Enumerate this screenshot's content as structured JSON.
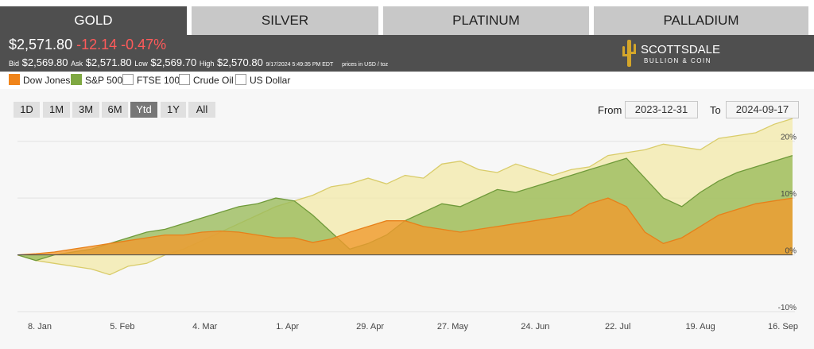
{
  "tabs": [
    {
      "label": "GOLD",
      "active": true
    },
    {
      "label": "SILVER",
      "active": false
    },
    {
      "label": "PLATINUM",
      "active": false
    },
    {
      "label": "PALLADIUM",
      "active": false
    }
  ],
  "quote": {
    "price": "$2,571.80",
    "change": "-12.14",
    "change_pct": "-0.47%",
    "bid_label": "Bid",
    "bid": "$2,569.80",
    "ask_label": "Ask",
    "ask": "$2,571.80",
    "low_label": "Low",
    "low": "$2,569.70",
    "high_label": "High",
    "high": "$2,570.80",
    "timestamp": "9/17/2024 5:49:35 PM EDT",
    "units": "prices in USD / toz"
  },
  "logo": {
    "line1": "SCOTTSDALE",
    "line2": "BULLION & COIN"
  },
  "legend": [
    {
      "label": "Dow Jones",
      "checked": true,
      "color": "#f0841a"
    },
    {
      "label": "S&P 500",
      "checked": true,
      "color": "#7fa842"
    },
    {
      "label": "FTSE 100",
      "checked": false,
      "color": "#ffffff"
    },
    {
      "label": "Crude Oil",
      "checked": false,
      "color": "#ffffff"
    },
    {
      "label": "US Dollar",
      "checked": false,
      "color": "#ffffff"
    }
  ],
  "range_buttons": [
    {
      "label": "1D",
      "active": false
    },
    {
      "label": "1M",
      "active": false
    },
    {
      "label": "3M",
      "active": false
    },
    {
      "label": "6M",
      "active": false
    },
    {
      "label": "Ytd",
      "active": true
    },
    {
      "label": "1Y",
      "active": false
    },
    {
      "label": "All",
      "active": false
    }
  ],
  "date_range": {
    "from_label": "From",
    "from": "2023-12-31",
    "to_label": "To",
    "to": "2024-09-17"
  },
  "chart_data": {
    "type": "area",
    "x_ticks": [
      "8. Jan",
      "5. Feb",
      "4. Mar",
      "1. Apr",
      "29. Apr",
      "27. May",
      "24. Jun",
      "22. Jul",
      "19. Aug",
      "16. Sep"
    ],
    "y_ticks": [
      "20%",
      "10%",
      "0%",
      "-10%"
    ],
    "ylim": [
      -10,
      25
    ],
    "series": [
      {
        "name": "",
        "color": "#f3e9a8",
        "values": [
          0,
          -1,
          -1.5,
          -2,
          -2.5,
          -3.5,
          -2,
          -1.5,
          0,
          1,
          2.5,
          4,
          5.5,
          7,
          8.5,
          9.5,
          10.5,
          12,
          12.5,
          13.5,
          12.5,
          14,
          13.5,
          16,
          16.5,
          15,
          14.5,
          16,
          15,
          14,
          15,
          15.5,
          17.5,
          18,
          18.5,
          19.5,
          19,
          18.5,
          20.5,
          21,
          21.5,
          23,
          24
        ]
      },
      {
        "name": "S&P 500",
        "color": "#9bbb5d",
        "values": [
          0,
          -1,
          0,
          0.5,
          1,
          2,
          3,
          4,
          4.5,
          5.5,
          6.5,
          7.5,
          8.5,
          9,
          10,
          9.5,
          7,
          4,
          1,
          2,
          3.5,
          6,
          7.5,
          9,
          8.5,
          10,
          11.5,
          11,
          12,
          13,
          14,
          15,
          16,
          17,
          13.5,
          10,
          8.5,
          11,
          13,
          14.5,
          15.5,
          16.5,
          17.5
        ]
      },
      {
        "name": "Dow Jones",
        "color": "#f09a2e",
        "values": [
          0,
          0.2,
          0.5,
          1,
          1.5,
          2,
          2.5,
          3,
          3.5,
          3.5,
          4,
          4.2,
          4,
          3.5,
          3,
          3,
          2.2,
          2.8,
          4,
          5,
          6,
          6,
          5,
          4.5,
          4,
          4.5,
          5,
          5.5,
          6,
          6.5,
          7,
          9,
          10,
          8.5,
          4,
          2,
          3,
          5,
          7,
          8,
          9,
          9.5,
          10
        ]
      }
    ]
  }
}
